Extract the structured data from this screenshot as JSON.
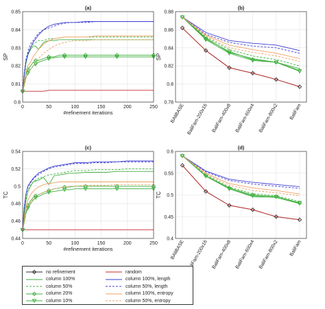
{
  "chart_data": [
    {
      "panel": "(a)",
      "type": "line",
      "xlabel": "#refinement iterations",
      "ylabel": "SP",
      "xlim": [
        0,
        250
      ],
      "ylim": [
        0.8,
        0.85
      ],
      "xticks": [
        "0",
        "50",
        "100",
        "150",
        "200",
        "250"
      ],
      "yticks": [
        "0.8",
        "0.81",
        "0.82",
        "0.83",
        "0.84",
        "0.85"
      ],
      "x": [
        0,
        3,
        6,
        10,
        15,
        20,
        25,
        30,
        40,
        50,
        60,
        70,
        80,
        90,
        100,
        120,
        140,
        160,
        180,
        200,
        220,
        250
      ],
      "series": [
        {
          "name": "random",
          "values": [
            0.806,
            0.806,
            0.806,
            0.806,
            0.806,
            0.806,
            0.806,
            0.806,
            0.806,
            0.8065,
            0.8065,
            0.8065,
            0.8065,
            0.8065,
            0.8065,
            0.8065,
            0.8065,
            0.8065,
            0.8065,
            0.8065,
            0.8065,
            0.8065
          ]
        },
        {
          "name": "column 100%",
          "values": [
            0.806,
            0.814,
            0.821,
            0.826,
            0.829,
            0.831,
            0.831,
            0.829,
            0.833,
            0.834,
            0.834,
            0.8345,
            0.8345,
            0.8345,
            0.8345,
            0.8345,
            0.8345,
            0.8345,
            0.8345,
            0.8345,
            0.8345,
            0.8345
          ]
        },
        {
          "name": "column 50%",
          "values": [
            0.806,
            0.815,
            0.822,
            0.827,
            0.83,
            0.832,
            0.833,
            0.834,
            0.834,
            0.835,
            0.835,
            0.8355,
            0.836,
            0.836,
            0.836,
            0.836,
            0.836,
            0.836,
            0.836,
            0.836,
            0.836,
            0.836
          ]
        },
        {
          "name": "column 20%",
          "values": [
            0.806,
            0.81,
            0.815,
            0.818,
            0.82,
            0.822,
            0.823,
            0.823,
            0.824,
            0.825,
            0.825,
            0.826,
            0.826,
            0.826,
            0.826,
            0.826,
            0.826,
            0.826,
            0.826,
            0.826,
            0.826,
            0.826
          ]
        },
        {
          "name": "column 10%",
          "values": [
            0.806,
            0.809,
            0.813,
            0.816,
            0.818,
            0.82,
            0.821,
            0.822,
            0.823,
            0.824,
            0.8245,
            0.825,
            0.825,
            0.825,
            0.825,
            0.825,
            0.825,
            0.825,
            0.825,
            0.825,
            0.825,
            0.825
          ]
        },
        {
          "name": "column 100%, length",
          "values": [
            0.806,
            0.815,
            0.822,
            0.826,
            0.83,
            0.833,
            0.835,
            0.837,
            0.84,
            0.842,
            0.843,
            0.8435,
            0.844,
            0.844,
            0.844,
            0.8445,
            0.8445,
            0.8445,
            0.8445,
            0.8445,
            0.8445,
            0.8445
          ]
        },
        {
          "name": "column 50%, length",
          "values": [
            0.806,
            0.816,
            0.823,
            0.828,
            0.832,
            0.834,
            0.836,
            0.838,
            0.84,
            0.841,
            0.842,
            0.843,
            0.8435,
            0.844,
            0.844,
            0.844,
            0.8445,
            0.8445,
            0.8445,
            0.8445,
            0.8445,
            0.8445
          ]
        },
        {
          "name": "column 100%, entropy",
          "values": [
            0.806,
            0.811,
            0.816,
            0.82,
            0.822,
            0.825,
            0.827,
            0.829,
            0.832,
            0.834,
            0.835,
            0.8355,
            0.836,
            0.836,
            0.836,
            0.836,
            0.8365,
            0.8365,
            0.8365,
            0.8365,
            0.8365,
            0.8365
          ]
        },
        {
          "name": "column 50%, entropy",
          "values": [
            0.806,
            0.809,
            0.813,
            0.816,
            0.818,
            0.82,
            0.822,
            0.824,
            0.827,
            0.829,
            0.831,
            0.832,
            0.833,
            0.8335,
            0.834,
            0.834,
            0.8345,
            0.8345,
            0.8345,
            0.8345,
            0.8345,
            0.8345
          ]
        }
      ]
    },
    {
      "panel": "(b)",
      "type": "line",
      "ylabel": "SP",
      "ylim": [
        0.78,
        0.88
      ],
      "categories": [
        "BAliBASE",
        "BaliFam-200x16",
        "BaliFam-400x8",
        "BaliFam-600x4",
        "BaliFam-800x2",
        "BaliFam"
      ],
      "yticks": [
        "0.78",
        "0.8",
        "0.82",
        "0.84",
        "0.86",
        "0.88"
      ],
      "series": [
        {
          "name": "no refinement",
          "values": [
            0.862,
            0.837,
            0.818,
            0.812,
            0.805,
            0.797
          ]
        },
        {
          "name": "random",
          "values": [
            0.862,
            0.837,
            0.818,
            0.812,
            0.805,
            0.797
          ]
        },
        {
          "name": "column 100%",
          "values": [
            0.874,
            0.851,
            0.835,
            0.828,
            0.824,
            0.817
          ]
        },
        {
          "name": "column 50%",
          "values": [
            0.874,
            0.852,
            0.838,
            0.831,
            0.827,
            0.82
          ]
        },
        {
          "name": "column 20%",
          "values": [
            0.874,
            0.85,
            0.836,
            0.827,
            0.824,
            0.815
          ]
        },
        {
          "name": "column 10%",
          "values": [
            0.874,
            0.849,
            0.834,
            0.826,
            0.824,
            0.814
          ]
        },
        {
          "name": "column 100%, length",
          "values": [
            0.874,
            0.857,
            0.848,
            0.845,
            0.843,
            0.837
          ]
        },
        {
          "name": "column 50%, length",
          "values": [
            0.874,
            0.855,
            0.846,
            0.842,
            0.84,
            0.834
          ]
        },
        {
          "name": "column 100%, entropy",
          "values": [
            0.874,
            0.854,
            0.843,
            0.838,
            0.834,
            0.828
          ]
        },
        {
          "name": "column 50%, entropy",
          "values": [
            0.874,
            0.853,
            0.84,
            0.835,
            0.831,
            0.825
          ]
        }
      ]
    },
    {
      "panel": "(c)",
      "type": "line",
      "xlabel": "#refinement iterations",
      "ylabel": "TC",
      "xlim": [
        0,
        250
      ],
      "ylim": [
        0.44,
        0.54
      ],
      "xticks": [
        "0",
        "50",
        "100",
        "150",
        "200",
        "250"
      ],
      "yticks": [
        "0.44",
        "0.46",
        "0.48",
        "0.5",
        "0.52",
        "0.54"
      ],
      "x": [
        0,
        3,
        6,
        10,
        15,
        20,
        25,
        30,
        40,
        50,
        60,
        70,
        80,
        90,
        100,
        120,
        140,
        160,
        180,
        200,
        220,
        250
      ],
      "series": [
        {
          "name": "random",
          "values": [
            0.45,
            0.45,
            0.45,
            0.45,
            0.45,
            0.45,
            0.45,
            0.45,
            0.45,
            0.45,
            0.45,
            0.45,
            0.45,
            0.45,
            0.45,
            0.45,
            0.45,
            0.45,
            0.45,
            0.45,
            0.45,
            0.45
          ]
        },
        {
          "name": "column 100%",
          "values": [
            0.45,
            0.468,
            0.482,
            0.494,
            0.5,
            0.505,
            0.506,
            0.507,
            0.51,
            0.502,
            0.512,
            0.513,
            0.514,
            0.515,
            0.515,
            0.516,
            0.516,
            0.516,
            0.517,
            0.517,
            0.517,
            0.517
          ]
        },
        {
          "name": "column 50%",
          "values": [
            0.45,
            0.47,
            0.485,
            0.495,
            0.501,
            0.505,
            0.507,
            0.509,
            0.511,
            0.513,
            0.514,
            0.515,
            0.516,
            0.517,
            0.518,
            0.518,
            0.519,
            0.519,
            0.519,
            0.52,
            0.52,
            0.52
          ]
        },
        {
          "name": "column 20%",
          "values": [
            0.45,
            0.46,
            0.47,
            0.478,
            0.483,
            0.487,
            0.489,
            0.49,
            0.493,
            0.495,
            0.497,
            0.498,
            0.499,
            0.499,
            0.5,
            0.5,
            0.5,
            0.5,
            0.5,
            0.5,
            0.5,
            0.5
          ]
        },
        {
          "name": "column 10%",
          "values": [
            0.45,
            0.458,
            0.468,
            0.475,
            0.48,
            0.484,
            0.487,
            0.488,
            0.491,
            0.493,
            0.494,
            0.495,
            0.496,
            0.496,
            0.497,
            0.497,
            0.497,
            0.497,
            0.497,
            0.497,
            0.497,
            0.497
          ]
        },
        {
          "name": "column 100%, length",
          "values": [
            0.45,
            0.475,
            0.49,
            0.5,
            0.505,
            0.509,
            0.512,
            0.515,
            0.518,
            0.521,
            0.523,
            0.524,
            0.525,
            0.526,
            0.527,
            0.527,
            0.528,
            0.528,
            0.528,
            0.529,
            0.529,
            0.529
          ]
        },
        {
          "name": "column 50%, length",
          "values": [
            0.45,
            0.476,
            0.49,
            0.499,
            0.504,
            0.508,
            0.511,
            0.513,
            0.517,
            0.52,
            0.522,
            0.523,
            0.524,
            0.525,
            0.526,
            0.526,
            0.527,
            0.527,
            0.528,
            0.528,
            0.528,
            0.528
          ]
        },
        {
          "name": "column 100%, entropy",
          "values": [
            0.45,
            0.463,
            0.475,
            0.484,
            0.49,
            0.494,
            0.497,
            0.499,
            0.502,
            0.503,
            0.504,
            0.505,
            0.505,
            0.505,
            0.505,
            0.505,
            0.505,
            0.505,
            0.505,
            0.505,
            0.505,
            0.505
          ]
        },
        {
          "name": "column 50%, entropy",
          "values": [
            0.45,
            0.46,
            0.47,
            0.477,
            0.482,
            0.485,
            0.488,
            0.49,
            0.493,
            0.495,
            0.497,
            0.498,
            0.499,
            0.5,
            0.5,
            0.501,
            0.501,
            0.501,
            0.502,
            0.502,
            0.502,
            0.502
          ]
        }
      ]
    },
    {
      "panel": "(d)",
      "type": "line",
      "ylabel": "TC",
      "ylim": [
        0.4,
        0.6
      ],
      "categories": [
        "BAliBASE",
        "BaliFam-200x16",
        "BaliFam-400x8",
        "BaliFam-600x4",
        "BaliFam-800x2",
        "BaliFam"
      ],
      "yticks": [
        "0.4",
        "0.45",
        "0.5",
        "0.55",
        "0.6"
      ],
      "series": [
        {
          "name": "no refinement",
          "values": [
            0.568,
            0.508,
            0.476,
            0.466,
            0.45,
            0.443
          ]
        },
        {
          "name": "random",
          "values": [
            0.568,
            0.508,
            0.476,
            0.466,
            0.45,
            0.443
          ]
        },
        {
          "name": "column 100%",
          "values": [
            0.59,
            0.544,
            0.514,
            0.496,
            0.494,
            0.48
          ]
        },
        {
          "name": "column 50%",
          "values": [
            0.59,
            0.546,
            0.518,
            0.503,
            0.498,
            0.485
          ]
        },
        {
          "name": "column 20%",
          "values": [
            0.59,
            0.544,
            0.516,
            0.5,
            0.496,
            0.481
          ]
        },
        {
          "name": "column 10%",
          "values": [
            0.59,
            0.543,
            0.514,
            0.498,
            0.496,
            0.482
          ]
        },
        {
          "name": "column 100%, length",
          "values": [
            0.59,
            0.555,
            0.536,
            0.529,
            0.524,
            0.519
          ]
        },
        {
          "name": "column 50%, length",
          "values": [
            0.59,
            0.553,
            0.533,
            0.525,
            0.52,
            0.515
          ]
        },
        {
          "name": "column 100%, entropy",
          "values": [
            0.59,
            0.55,
            0.526,
            0.516,
            0.51,
            0.502
          ]
        },
        {
          "name": "column 50%, entropy",
          "values": [
            0.59,
            0.548,
            0.522,
            0.51,
            0.505,
            0.498
          ]
        }
      ]
    }
  ],
  "legend": {
    "items": [
      {
        "label": "no refinement",
        "color": "#2b2b2b",
        "dash": "",
        "marker": "diamond"
      },
      {
        "label": "random",
        "color": "#c62828",
        "dash": "",
        "marker": ""
      },
      {
        "label": "column 100%",
        "color": "#3cae3c",
        "dash": "",
        "marker": ""
      },
      {
        "label": "column 100%, length",
        "color": "#3a3ad0",
        "dash": "",
        "marker": ""
      },
      {
        "label": "column 50%",
        "color": "#3cae3c",
        "dash": "dash",
        "marker": ""
      },
      {
        "label": "column 50%, length",
        "color": "#3a3ad0",
        "dash": "dash",
        "marker": ""
      },
      {
        "label": "column 20%",
        "color": "#3cae3c",
        "dash": "",
        "marker": "diamond"
      },
      {
        "label": "column 100%, entropy",
        "color": "#f0a060",
        "dash": "",
        "marker": ""
      },
      {
        "label": "column 10%",
        "color": "#3cae3c",
        "dash": "",
        "marker": "triangle"
      },
      {
        "label": "column 50%, entropy",
        "color": "#f0a060",
        "dash": "dash",
        "marker": ""
      }
    ]
  }
}
